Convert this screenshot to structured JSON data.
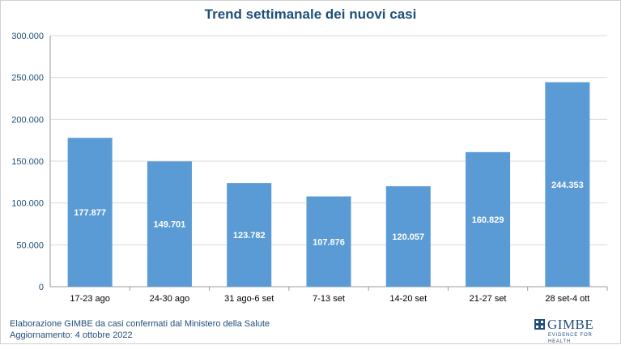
{
  "chart_data": {
    "type": "bar",
    "title": "Trend settimanale dei nuovi casi",
    "categories": [
      "17-23 ago",
      "24-30 ago",
      "31 ago-6 set",
      "7-13 set",
      "14-20 set",
      "21-27 set",
      "28 set-4 ott"
    ],
    "values": [
      177877,
      149701,
      123782,
      107876,
      120057,
      160829,
      244353
    ],
    "data_labels": [
      "177.877",
      "149.701",
      "123.782",
      "107.876",
      "120.057",
      "160.829",
      "244.353"
    ],
    "y_ticks": [
      "0",
      "50.000",
      "100.000",
      "150.000",
      "200.000",
      "250.000",
      "300.000"
    ],
    "ylim": [
      0,
      300000
    ],
    "grid": true,
    "legend": "none",
    "bar_color": "#5b9bd5"
  },
  "footer": {
    "line1": "Elaborazione GIMBE da casi confermati dal Ministero della Salute",
    "line2": "Aggiornamento: 4 ottobre 2022"
  },
  "logo": {
    "name": "GIMBE",
    "tagline": "EVIDENCE FOR HEALTH",
    "icon": "gimbe-logo-icon"
  }
}
